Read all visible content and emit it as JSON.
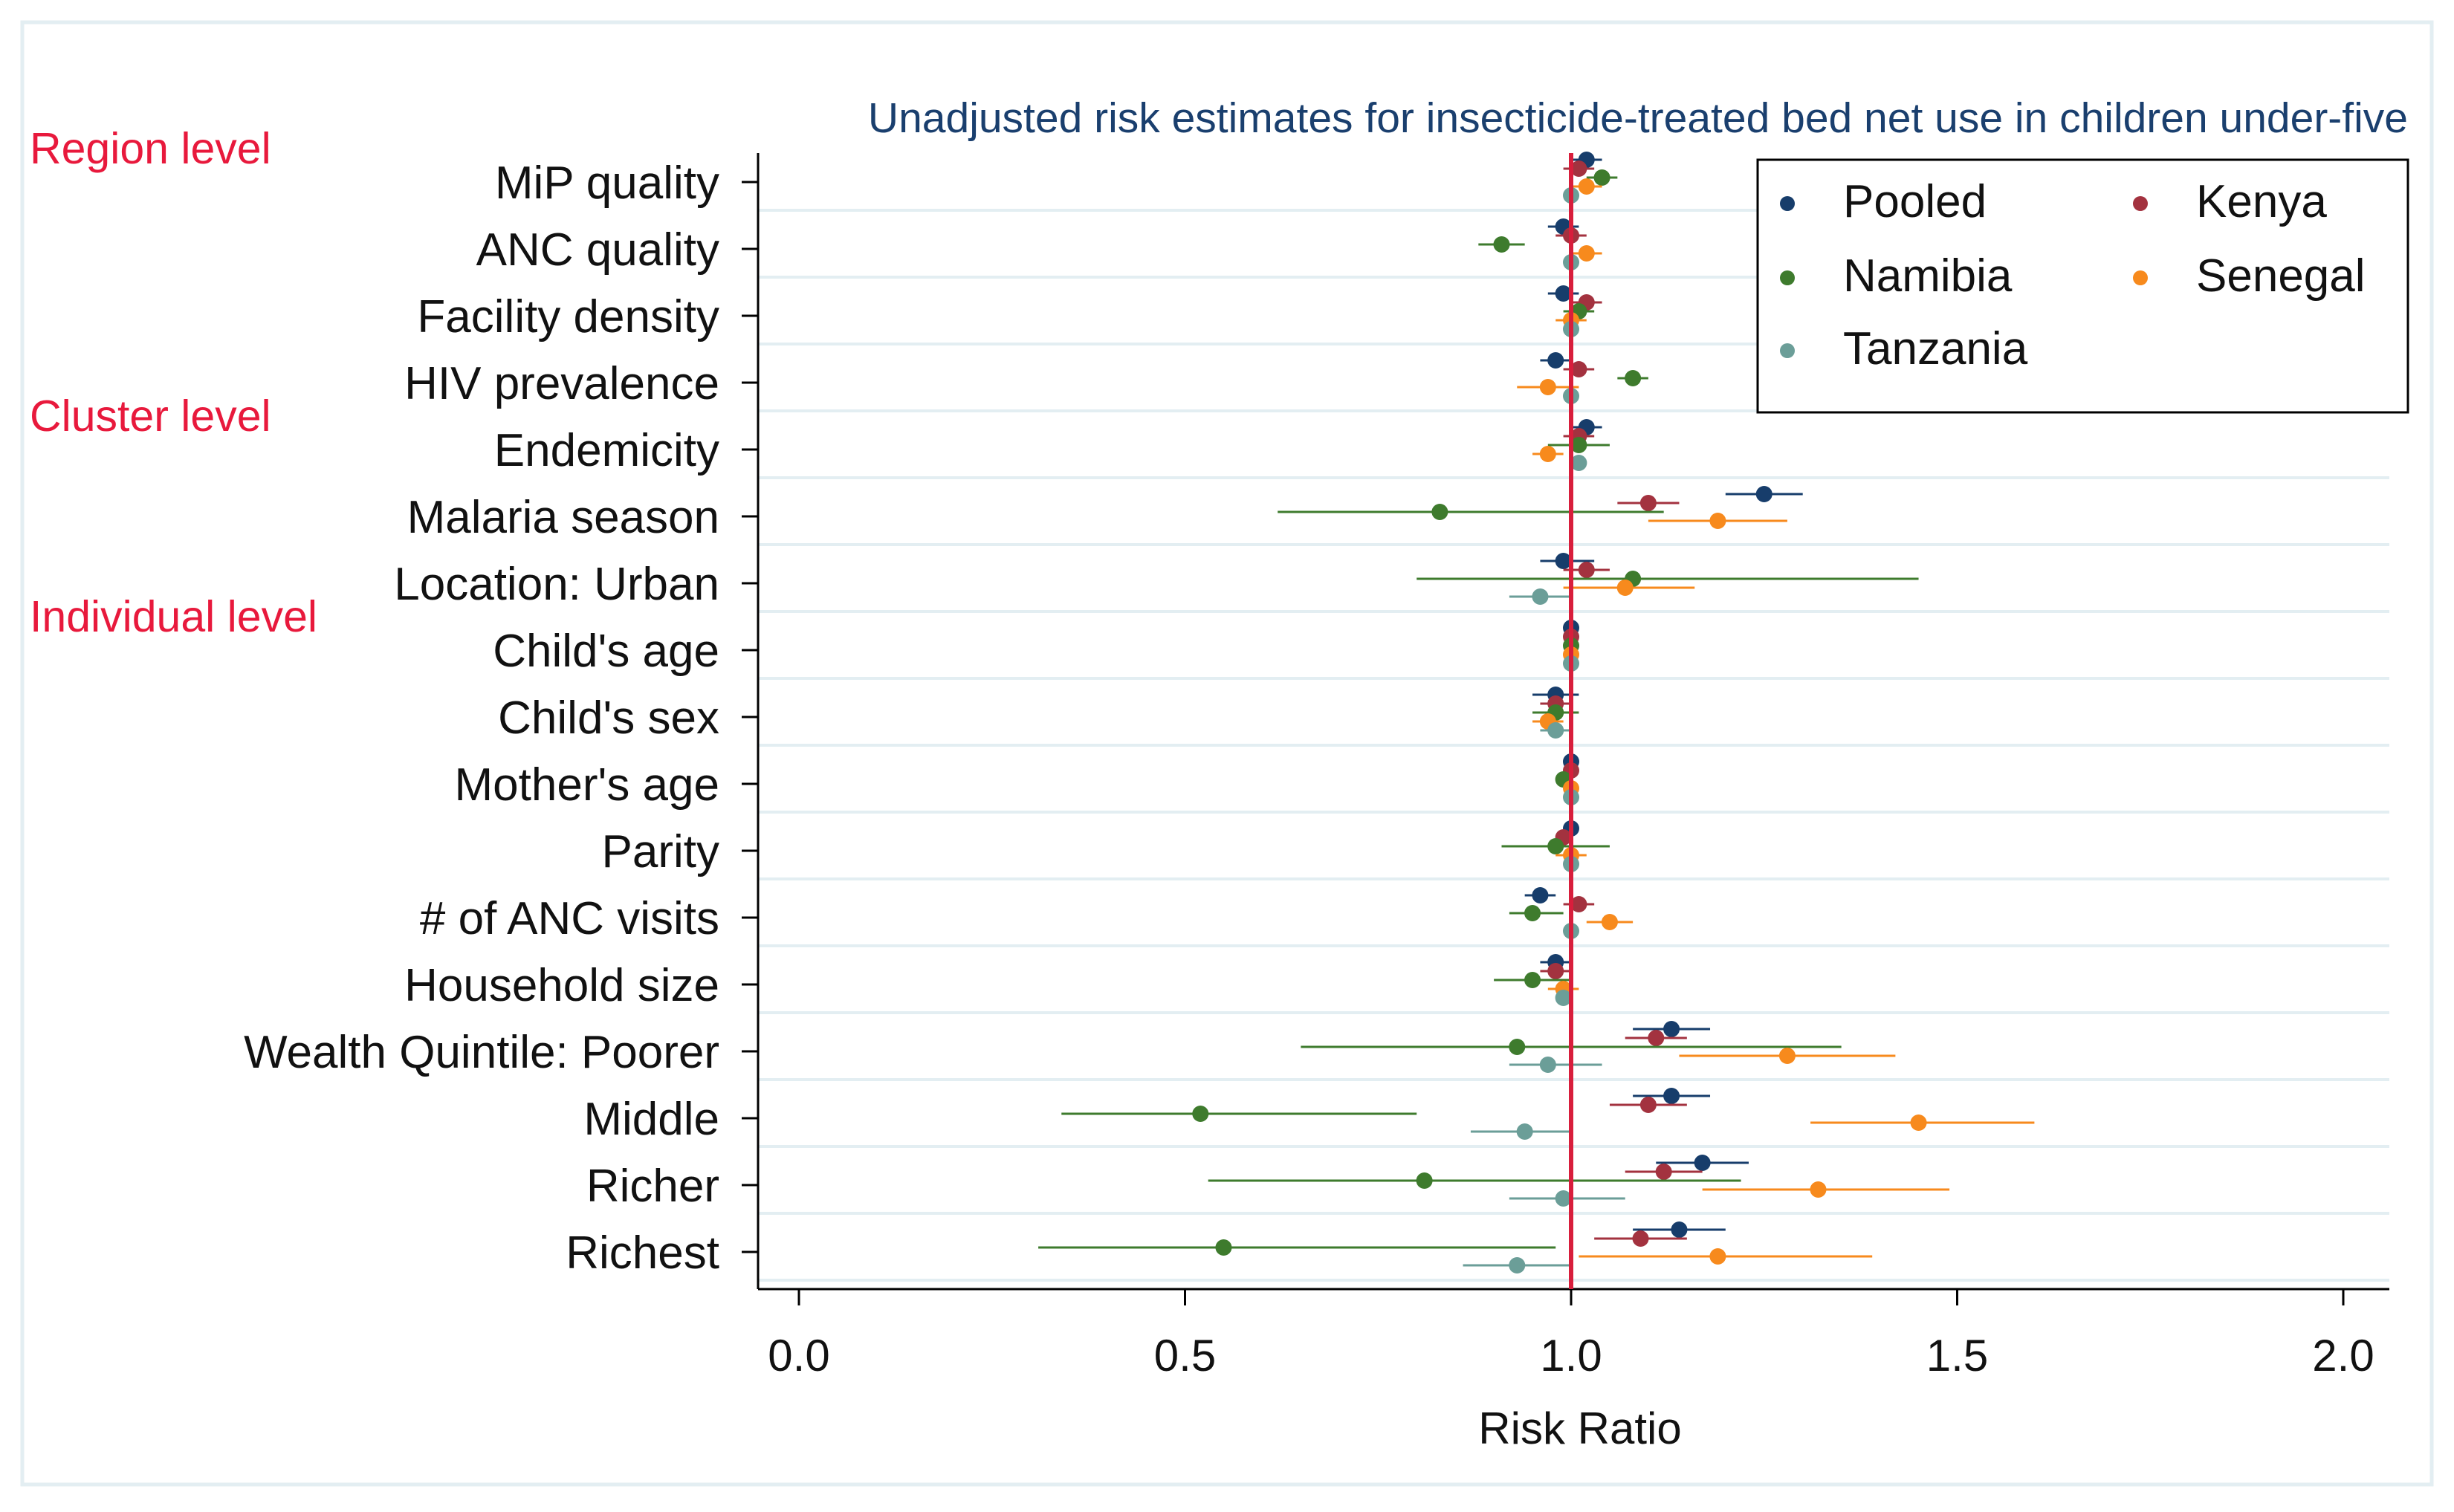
{
  "chart_data": {
    "type": "forest",
    "title": "Unadjusted risk estimates for insecticide-treated bed net use in children under-five",
    "xlabel": "Risk Ratio",
    "xlim": [
      -0.05,
      2.05
    ],
    "xticks": [
      0.0,
      0.5,
      1.0,
      1.5,
      2.0
    ],
    "xtick_labels": [
      "0.0",
      "0.5",
      "1.0",
      "1.5",
      "2.0"
    ],
    "reference_line": 1.0,
    "reference_color": "#d81e3c",
    "legend_position": "top-right",
    "section_labels": [
      {
        "label": "Region level",
        "before": "MiP quality"
      },
      {
        "label": "Cluster level",
        "before": "Endemicity"
      },
      {
        "label": "Individual level",
        "before": "Child's age"
      }
    ],
    "categories": [
      "MiP quality",
      "ANC quality",
      "Facility density",
      "HIV prevalence",
      "Endemicity",
      "Malaria season",
      "Location: Urban",
      "Child's age",
      "Child's sex",
      "Mother's age",
      "Parity",
      "# of ANC visits",
      "Household size",
      "Wealth Quintile: Poorer",
      "Middle",
      "Richer",
      "Richest"
    ],
    "series": [
      {
        "name": "Pooled",
        "color": "#173d6b",
        "estimates": [
          1.02,
          0.99,
          0.99,
          0.98,
          1.02,
          1.25,
          0.99,
          1.0,
          0.98,
          1.0,
          1.0,
          0.96,
          0.98,
          1.13,
          1.13,
          1.17,
          1.14
        ],
        "ci_low": [
          1.0,
          0.97,
          0.97,
          0.96,
          1.0,
          1.2,
          0.96,
          0.99,
          0.95,
          0.99,
          0.99,
          0.94,
          0.96,
          1.08,
          1.08,
          1.11,
          1.08
        ],
        "ci_high": [
          1.04,
          1.01,
          1.01,
          1.0,
          1.04,
          1.3,
          1.03,
          1.01,
          1.01,
          1.01,
          1.01,
          0.98,
          1.0,
          1.18,
          1.18,
          1.23,
          1.2
        ]
      },
      {
        "name": "Kenya",
        "color": "#a3323f",
        "estimates": [
          1.01,
          1.0,
          1.02,
          1.01,
          1.01,
          1.1,
          1.02,
          1.0,
          0.98,
          1.0,
          0.99,
          1.01,
          0.98,
          1.11,
          1.1,
          1.12,
          1.09
        ],
        "ci_low": [
          0.99,
          0.98,
          1.0,
          0.99,
          0.99,
          1.06,
          0.99,
          0.99,
          0.96,
          0.99,
          0.98,
          0.99,
          0.96,
          1.07,
          1.05,
          1.07,
          1.03
        ],
        "ci_high": [
          1.03,
          1.02,
          1.04,
          1.03,
          1.03,
          1.14,
          1.05,
          1.01,
          1.0,
          1.01,
          1.0,
          1.03,
          1.0,
          1.15,
          1.15,
          1.17,
          1.15
        ]
      },
      {
        "name": "Namibia",
        "color": "#3e7b2d",
        "estimates": [
          1.04,
          0.91,
          1.01,
          1.08,
          1.01,
          0.83,
          1.08,
          1.0,
          0.98,
          0.99,
          0.98,
          0.95,
          0.95,
          0.93,
          0.52,
          0.81,
          0.55
        ],
        "ci_low": [
          1.02,
          0.88,
          0.99,
          1.06,
          0.97,
          0.62,
          0.8,
          0.99,
          0.95,
          0.98,
          0.91,
          0.92,
          0.9,
          0.65,
          0.34,
          0.53,
          0.31
        ],
        "ci_high": [
          1.06,
          0.94,
          1.03,
          1.1,
          1.05,
          1.12,
          1.45,
          1.01,
          1.01,
          1.0,
          1.05,
          0.99,
          1.0,
          1.35,
          0.8,
          1.22,
          0.98
        ]
      },
      {
        "name": "Senegal",
        "color": "#f78a1d",
        "estimates": [
          1.02,
          1.02,
          1.0,
          0.97,
          0.97,
          1.19,
          1.07,
          1.0,
          0.97,
          1.0,
          1.0,
          1.05,
          0.99,
          1.28,
          1.45,
          1.32,
          1.19
        ],
        "ci_low": [
          1.0,
          1.0,
          0.98,
          0.93,
          0.95,
          1.1,
          0.99,
          0.99,
          0.95,
          0.99,
          0.98,
          1.02,
          0.97,
          1.14,
          1.31,
          1.17,
          1.01
        ],
        "ci_high": [
          1.04,
          1.04,
          1.02,
          1.01,
          0.99,
          1.28,
          1.16,
          1.01,
          0.99,
          1.01,
          1.02,
          1.08,
          1.01,
          1.42,
          1.6,
          1.49,
          1.39
        ]
      },
      {
        "name": "Tanzania",
        "color": "#6b9e98",
        "estimates": [
          1.0,
          1.0,
          1.0,
          1.0,
          1.01,
          null,
          0.96,
          1.0,
          0.98,
          1.0,
          1.0,
          1.0,
          0.99,
          0.97,
          0.94,
          0.99,
          0.93
        ],
        "ci_low": [
          0.99,
          0.99,
          0.99,
          0.99,
          1.0,
          null,
          0.92,
          0.99,
          0.96,
          0.99,
          0.99,
          0.99,
          0.98,
          0.92,
          0.87,
          0.92,
          0.86
        ],
        "ci_high": [
          1.01,
          1.01,
          1.01,
          1.01,
          1.02,
          null,
          1.0,
          1.01,
          1.0,
          1.01,
          1.01,
          1.01,
          1.0,
          1.04,
          1.0,
          1.07,
          1.0
        ]
      }
    ]
  }
}
